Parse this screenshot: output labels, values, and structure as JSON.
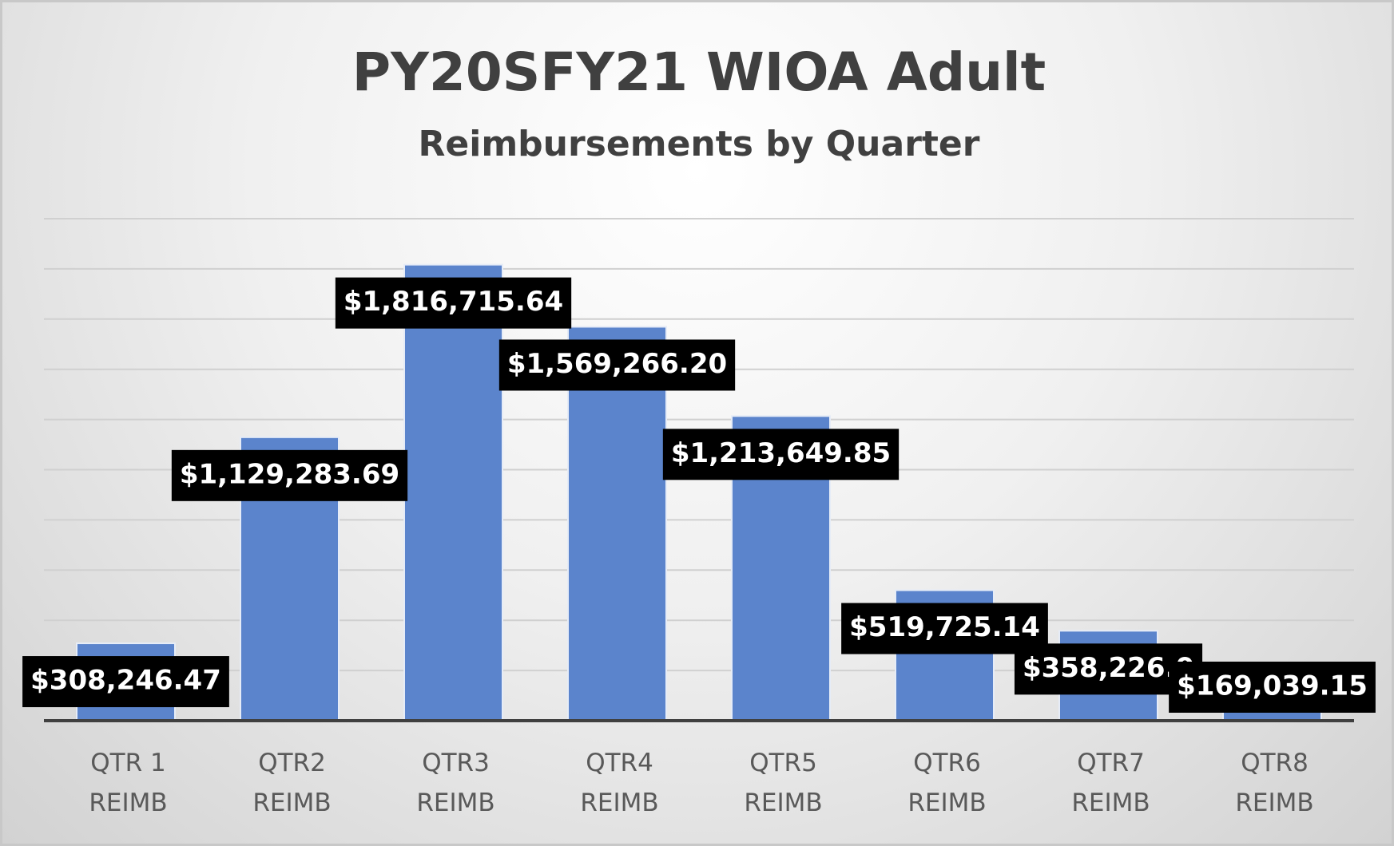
{
  "chart_data": {
    "type": "bar",
    "title": "PY20SFY21 WIOA Adult",
    "subtitle": "Reimbursements by Quarter",
    "categories": [
      "QTR 1 REIMB",
      "QTR2 REIMB",
      "QTR3 REIMB",
      "QTR4 REIMB",
      "QTR5 REIMB",
      "QTR6 REIMB",
      "QTR7 REIMB",
      "QTR8 REIMB"
    ],
    "values": [
      308246.47,
      1129283.69,
      1816715.64,
      1569266.2,
      1213649.85,
      519725.14,
      358226.0,
      169039.15
    ],
    "value_labels": [
      "$308,246.47",
      "$1,129,283.69",
      "$1,816,715.64",
      "$1,569,266.20",
      "$1,213,649.85",
      "$519,725.14",
      "$358,226.0",
      "$169,039.15"
    ],
    "color": "#5b84cc",
    "ylim": [
      0,
      2000000
    ],
    "yticks": [
      0,
      200000,
      400000,
      600000,
      800000,
      1000000,
      1200000,
      1400000,
      1600000,
      1800000,
      2000000
    ],
    "grid": true
  }
}
